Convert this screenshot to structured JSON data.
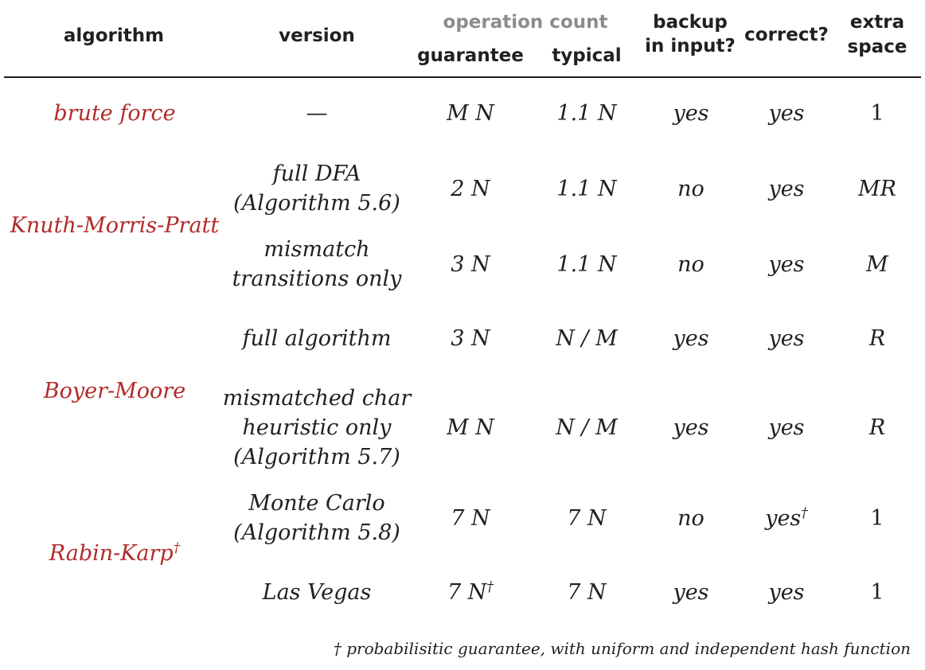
{
  "header": {
    "algorithm": "algorithm",
    "version": "version",
    "operation_count": "operation count",
    "guarantee": "guarantee",
    "typical": "typical",
    "backup_line1": "backup",
    "backup_line2": "in input?",
    "correct": "correct?",
    "extra_line1": "extra",
    "extra_line2": "space"
  },
  "algorithms": {
    "brute_force": "brute force",
    "kmp": "Knuth-Morris-Pratt",
    "boyer_moore": "Boyer-Moore",
    "rabin_karp": "Rabin-Karp",
    "rabin_karp_mark": "†"
  },
  "rows": [
    {
      "version": [
        "—"
      ],
      "guarantee": "M N",
      "guarantee_mark": "",
      "typical": "1.1 N",
      "backup": "yes",
      "correct": "yes",
      "correct_mark": "",
      "space": "1"
    },
    {
      "version": [
        "full DFA",
        "(Algorithm 5.6)"
      ],
      "guarantee": "2 N",
      "guarantee_mark": "",
      "typical": "1.1 N",
      "backup": "no",
      "correct": "yes",
      "correct_mark": "",
      "space": "MR"
    },
    {
      "version": [
        "mismatch",
        "transitions only"
      ],
      "guarantee": "3 N",
      "guarantee_mark": "",
      "typical": "1.1 N",
      "backup": "no",
      "correct": "yes",
      "correct_mark": "",
      "space": "M"
    },
    {
      "version": [
        "full algorithm"
      ],
      "guarantee": "3 N",
      "guarantee_mark": "",
      "typical": "N / M",
      "backup": "yes",
      "correct": "yes",
      "correct_mark": "",
      "space": "R"
    },
    {
      "version": [
        "mismatched char",
        "heuristic only",
        "(Algorithm 5.7)"
      ],
      "guarantee": "M N",
      "guarantee_mark": "",
      "typical": "N / M",
      "backup": "yes",
      "correct": "yes",
      "correct_mark": "",
      "space": "R"
    },
    {
      "version": [
        "Monte Carlo",
        "(Algorithm 5.8)"
      ],
      "guarantee": "7 N",
      "guarantee_mark": "",
      "typical": "7 N",
      "backup": "no",
      "correct": "yes",
      "correct_mark": "†",
      "space": "1"
    },
    {
      "version": [
        "Las Vegas"
      ],
      "guarantee": "7 N",
      "guarantee_mark": "†",
      "typical": "7 N",
      "backup": "yes",
      "correct": "yes",
      "correct_mark": "",
      "space": "1"
    }
  ],
  "footnote": "† probabilisitic guarantee, with uniform and independent hash function",
  "colors": {
    "algorithm_name": "#b22b2a",
    "text": "#231f20",
    "operation_count_header": "#8c8c8c"
  }
}
